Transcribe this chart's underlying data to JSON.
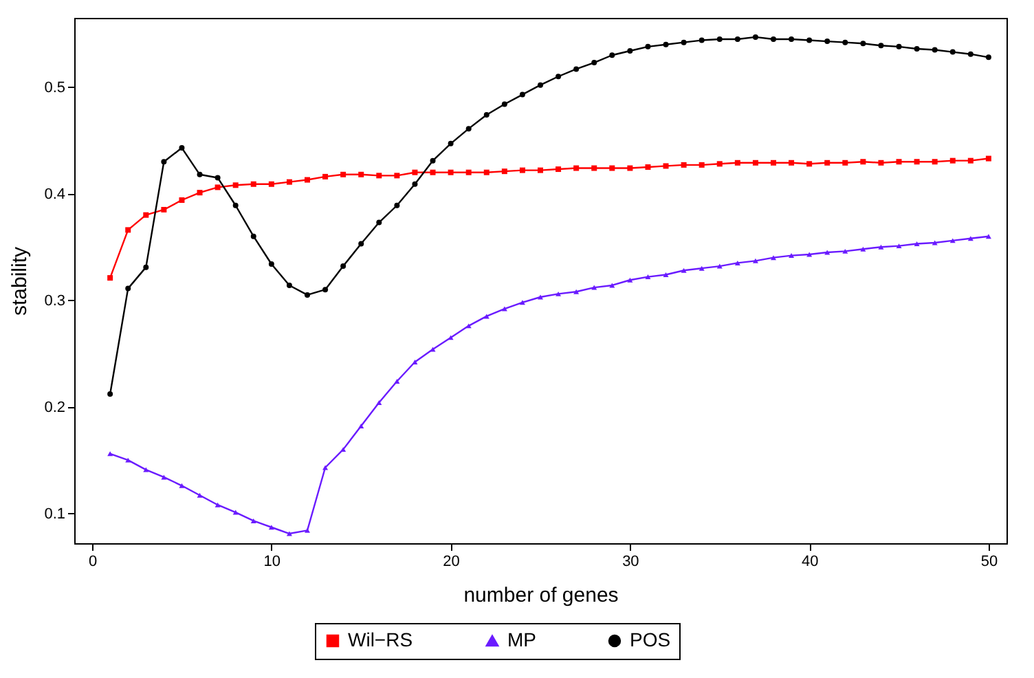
{
  "chart_data": {
    "type": "line",
    "xlabel": "number of genes",
    "ylabel": "stability",
    "x": [
      1,
      2,
      3,
      4,
      5,
      6,
      7,
      8,
      9,
      10,
      11,
      12,
      13,
      14,
      15,
      16,
      17,
      18,
      19,
      20,
      21,
      22,
      23,
      24,
      25,
      26,
      27,
      28,
      29,
      30,
      31,
      32,
      33,
      34,
      35,
      36,
      37,
      38,
      39,
      40,
      41,
      42,
      43,
      44,
      45,
      46,
      47,
      48,
      49,
      50
    ],
    "series": [
      {
        "name": "Wil−RS",
        "color": "#ff0000",
        "marker": "square",
        "values": [
          0.321,
          0.366,
          0.38,
          0.385,
          0.394,
          0.401,
          0.406,
          0.408,
          0.409,
          0.409,
          0.411,
          0.413,
          0.416,
          0.418,
          0.418,
          0.417,
          0.417,
          0.42,
          0.42,
          0.42,
          0.42,
          0.42,
          0.421,
          0.422,
          0.422,
          0.423,
          0.424,
          0.424,
          0.424,
          0.424,
          0.425,
          0.426,
          0.427,
          0.427,
          0.428,
          0.429,
          0.429,
          0.429,
          0.429,
          0.428,
          0.429,
          0.429,
          0.43,
          0.429,
          0.43,
          0.43,
          0.43,
          0.431,
          0.431,
          0.433
        ]
      },
      {
        "name": "MP",
        "color": "#6a1bff",
        "marker": "triangle",
        "values": [
          0.156,
          0.15,
          0.141,
          0.134,
          0.126,
          0.117,
          0.108,
          0.101,
          0.093,
          0.087,
          0.081,
          0.084,
          0.143,
          0.16,
          0.182,
          0.204,
          0.224,
          0.242,
          0.254,
          0.265,
          0.276,
          0.285,
          0.292,
          0.298,
          0.303,
          0.306,
          0.308,
          0.312,
          0.314,
          0.319,
          0.322,
          0.324,
          0.328,
          0.33,
          0.332,
          0.335,
          0.337,
          0.34,
          0.342,
          0.343,
          0.345,
          0.346,
          0.348,
          0.35,
          0.351,
          0.353,
          0.354,
          0.356,
          0.358,
          0.36
        ]
      },
      {
        "name": "POS",
        "color": "#000000",
        "marker": "circle",
        "values": [
          0.212,
          0.311,
          0.331,
          0.43,
          0.443,
          0.418,
          0.415,
          0.389,
          0.36,
          0.334,
          0.314,
          0.305,
          0.31,
          0.332,
          0.353,
          0.373,
          0.389,
          0.409,
          0.431,
          0.447,
          0.461,
          0.474,
          0.484,
          0.493,
          0.502,
          0.51,
          0.517,
          0.523,
          0.53,
          0.534,
          0.538,
          0.54,
          0.542,
          0.544,
          0.545,
          0.545,
          0.547,
          0.545,
          0.545,
          0.544,
          0.543,
          0.542,
          0.541,
          0.539,
          0.538,
          0.536,
          0.535,
          0.533,
          0.531,
          0.528
        ]
      }
    ],
    "xlim": [
      -1,
      51
    ],
    "xticks": [
      0,
      10,
      20,
      30,
      40,
      50
    ],
    "ylim": [
      0.072,
      0.565
    ],
    "yticks": [
      0.1,
      0.2,
      0.3,
      0.4,
      0.5
    ],
    "grid": false,
    "legend": "bottom"
  }
}
